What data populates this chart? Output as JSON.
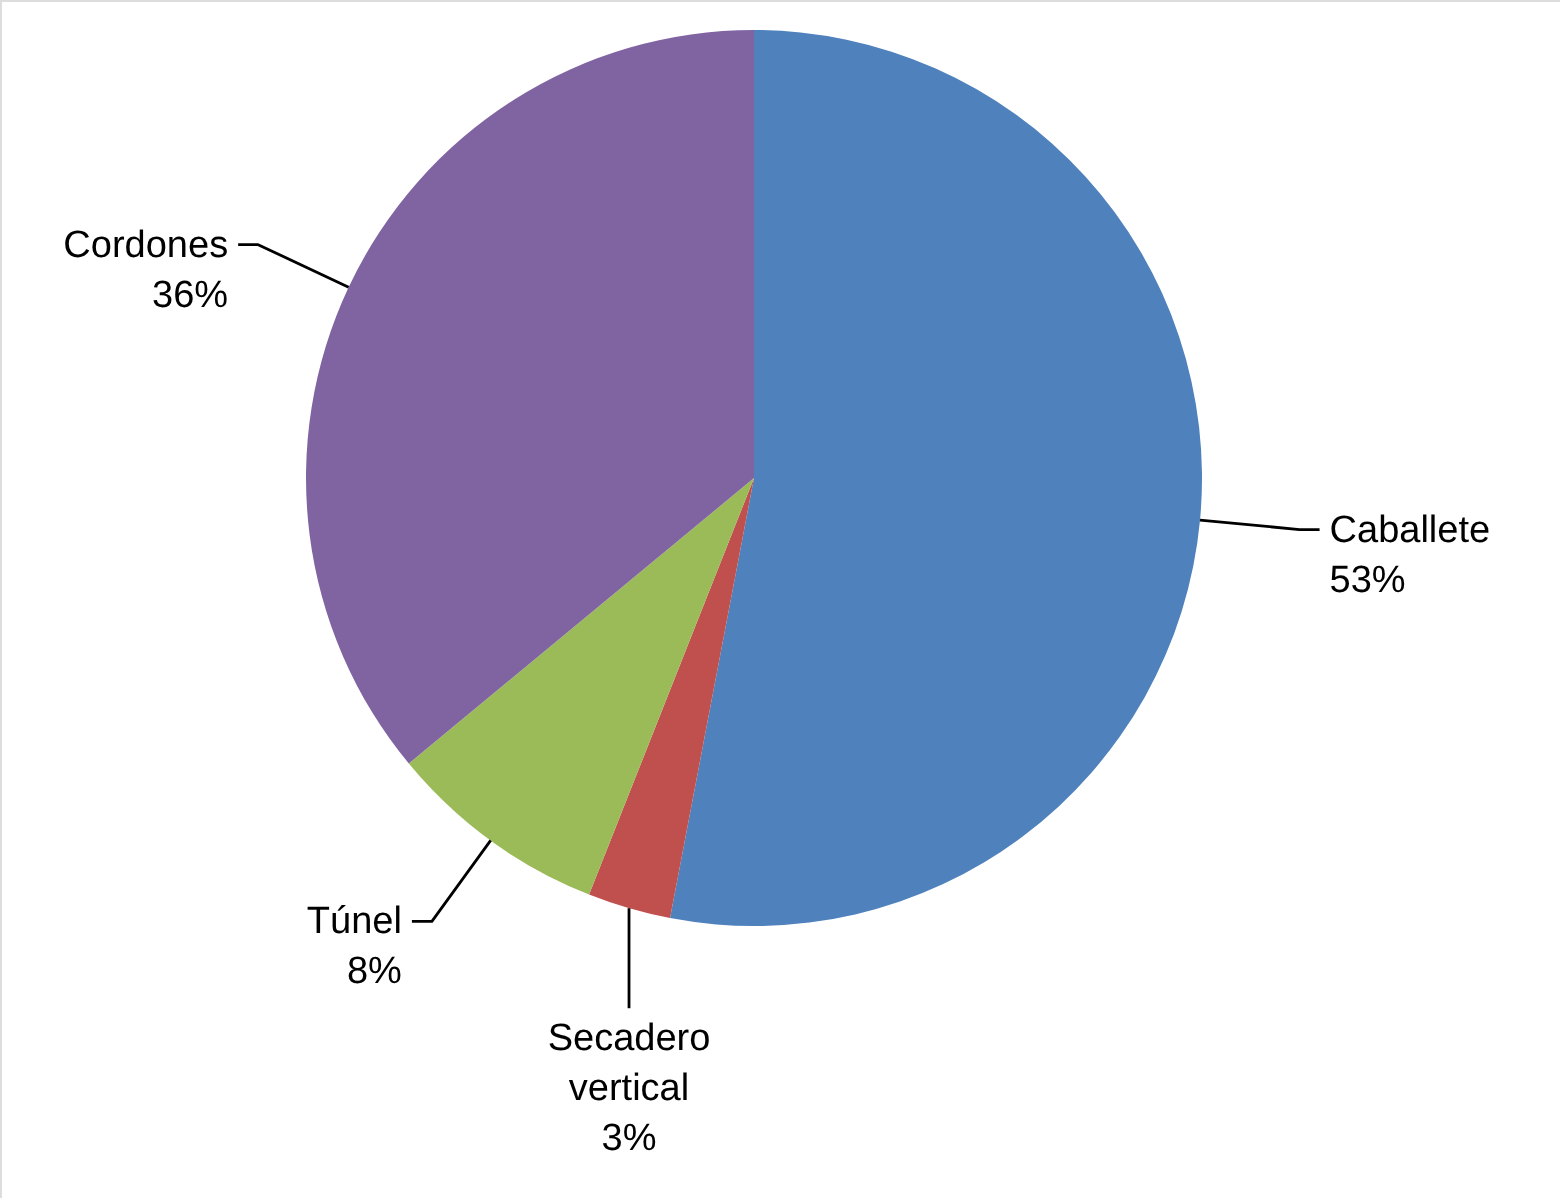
{
  "chart_data": {
    "type": "pie",
    "categories": [
      "Caballete",
      "Secadero vertical",
      "Túnel",
      "Cordones"
    ],
    "values": [
      53,
      3,
      8,
      36
    ],
    "colors": [
      "#4f81bd",
      "#c0504d",
      "#9bbb59",
      "#8064a2"
    ],
    "value_labels": [
      "53%",
      "3%",
      "8%",
      "36%"
    ]
  }
}
